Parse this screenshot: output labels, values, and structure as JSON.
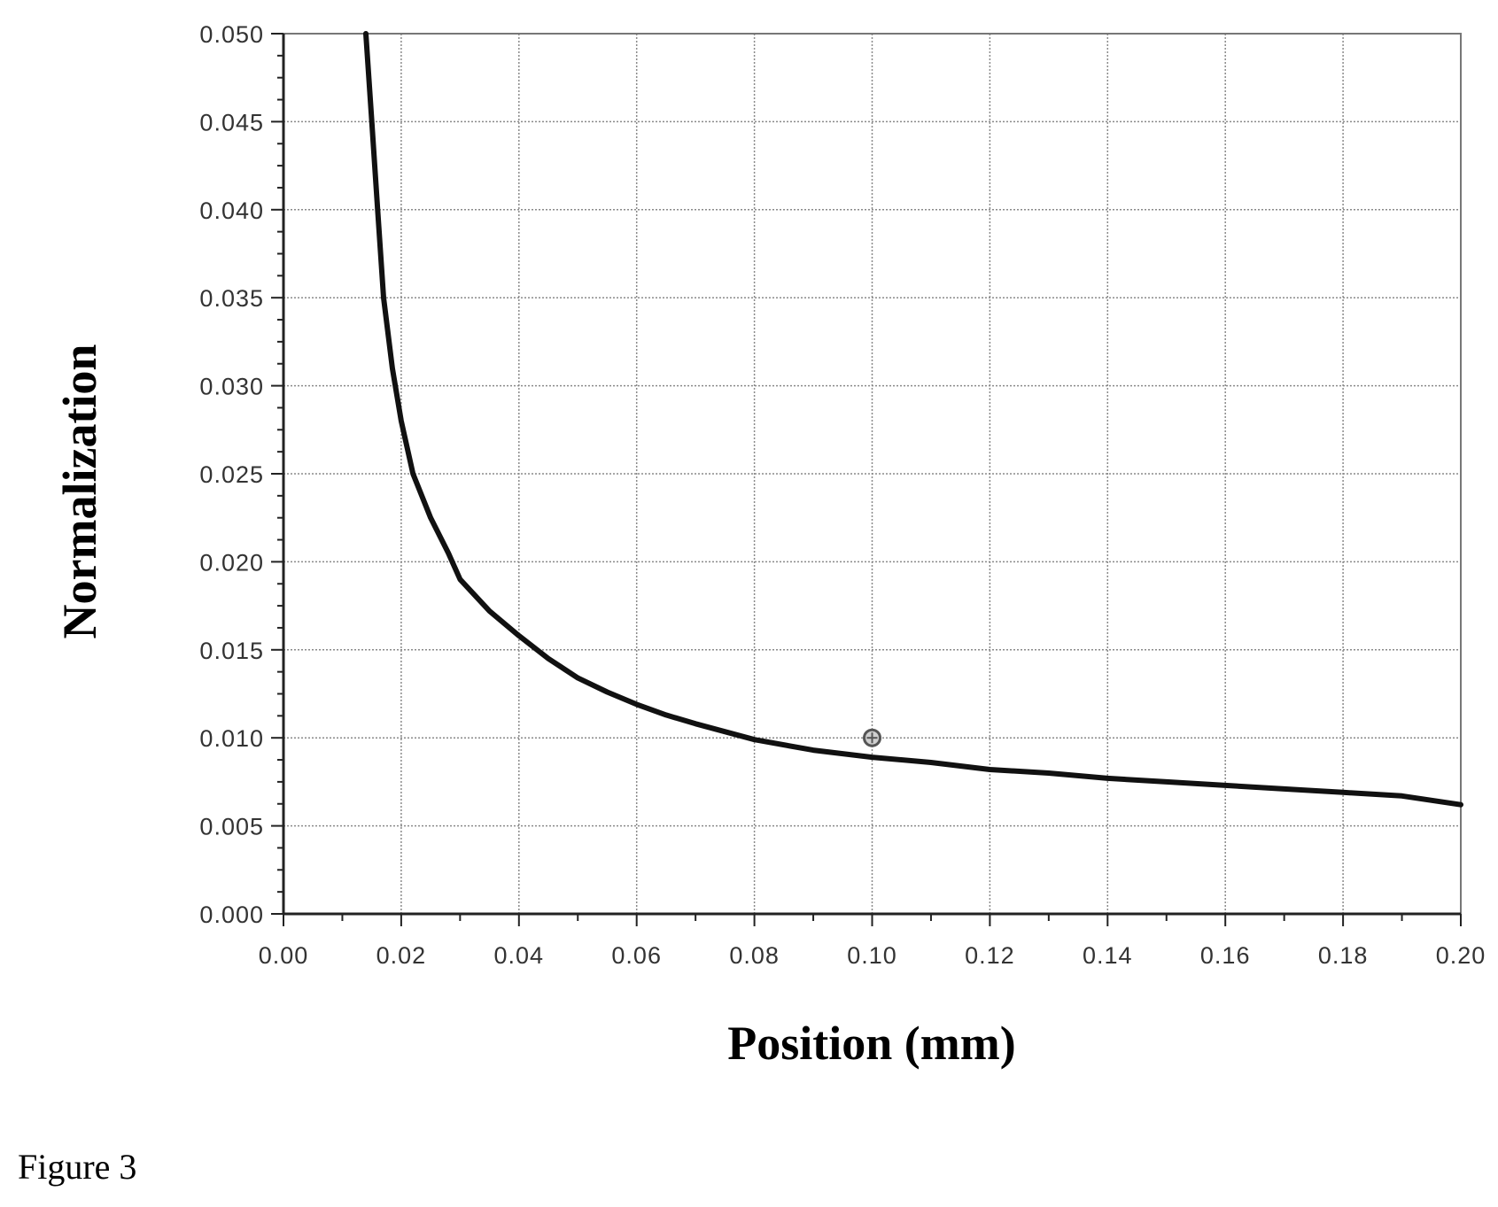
{
  "chart_data": {
    "type": "line",
    "xlabel": "Position (mm)",
    "ylabel": "Normalization",
    "xlim": [
      0,
      0.2
    ],
    "ylim": [
      0,
      0.05
    ],
    "x_ticks": [
      "0.00",
      "0.02",
      "0.04",
      "0.06",
      "0.08",
      "0.10",
      "0.12",
      "0.14",
      "0.16",
      "0.18",
      "0.20"
    ],
    "y_ticks": [
      "0.000",
      "0.005",
      "0.010",
      "0.015",
      "0.020",
      "0.025",
      "0.030",
      "0.035",
      "0.040",
      "0.045",
      "0.050"
    ],
    "grid": true,
    "series": [
      {
        "color": "#111111",
        "points": [
          [
            0.014,
            0.05
          ],
          [
            0.015,
            0.045
          ],
          [
            0.016,
            0.04
          ],
          [
            0.017,
            0.035
          ],
          [
            0.0185,
            0.031
          ],
          [
            0.02,
            0.028
          ],
          [
            0.022,
            0.025
          ],
          [
            0.025,
            0.0225
          ],
          [
            0.028,
            0.0205
          ],
          [
            0.03,
            0.019
          ],
          [
            0.035,
            0.0172
          ],
          [
            0.04,
            0.0158
          ],
          [
            0.045,
            0.0145
          ],
          [
            0.05,
            0.0134
          ],
          [
            0.055,
            0.0126
          ],
          [
            0.06,
            0.0119
          ],
          [
            0.065,
            0.0113
          ],
          [
            0.07,
            0.0108
          ],
          [
            0.08,
            0.0099
          ],
          [
            0.09,
            0.0093
          ],
          [
            0.1,
            0.0089
          ],
          [
            0.11,
            0.0086
          ],
          [
            0.12,
            0.0082
          ],
          [
            0.13,
            0.008
          ],
          [
            0.14,
            0.0077
          ],
          [
            0.15,
            0.0075
          ],
          [
            0.16,
            0.0073
          ],
          [
            0.17,
            0.0071
          ],
          [
            0.18,
            0.0069
          ],
          [
            0.19,
            0.0067
          ],
          [
            0.2,
            0.0062
          ]
        ]
      }
    ],
    "markers": [
      {
        "x": 0.1,
        "y": 0.01,
        "color": "#555555"
      }
    ]
  },
  "caption": "Figure 3"
}
